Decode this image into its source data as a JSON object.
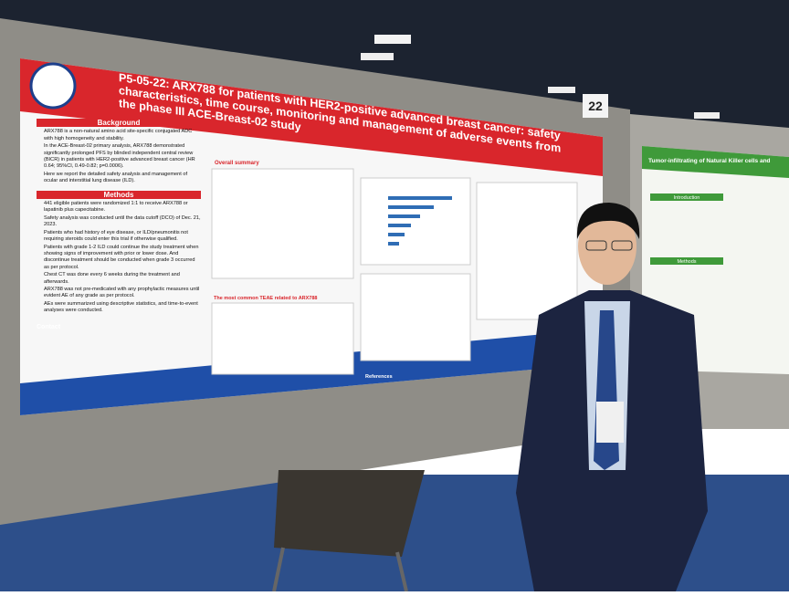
{
  "board_number": "22",
  "poster": {
    "title": "P5-05-22: ARX788 for patients with HER2-positive advanced breast cancer: safety characteristics, time course, monitoring and management of adverse events from the phase III ACE-Breast-02 study",
    "background": {
      "heading": "Background",
      "bullets": [
        "ARX788 is a non-natural amino acid site-specific conjugated ADC with high homogeneity and stability.",
        "In the ACE-Breast-02 primary analysis, ARX788 demonstrated significantly prolonged PFS by blinded independent central review (BICR) in patients with HER2-positive advanced breast cancer (HR 0.64; 95%CI, 0.49-0.82; p=0.0006).",
        "Here we report the detailed safety analysis and management of ocular and interstitial lung disease (ILD)."
      ]
    },
    "methods": {
      "heading": "Methods",
      "bullets": [
        "441 eligible patients were randomized 1:1 to receive ARX788 or lapatinib plus capecitabine.",
        "Safety analysis was conducted until the data cutoff (DCO) of Dec. 21, 2023.",
        "Patients who had history of eye disease, or ILD/pneumonitis not requiring steroids could enter this trial if otherwise qualified.",
        "Patients with grade 1-2 ILD could continue the study treatment when showing signs of improvement with prior or lower dose. And discontinue treatment should be conducted when grade 3 occurred as per protocol.",
        "Chest CT was done every 6 weeks during the treatment and afterwards.",
        "ARX788 was not pre-medicated with any prophylactic measures until evident AE of any grade as per protocol.",
        "AEs were summarized using descriptive statistics, and time-to-event analyses were conducted."
      ]
    },
    "contact_heading": "Contact",
    "overall_heading": "Overall summary",
    "teae_heading": "The most common TEAE related to ARX788",
    "references_heading": "References"
  },
  "neighbor_poster": {
    "title": "Tumor-infiltrating of Natural Killer cells and",
    "headings": [
      "Introduction",
      "Methods"
    ]
  }
}
